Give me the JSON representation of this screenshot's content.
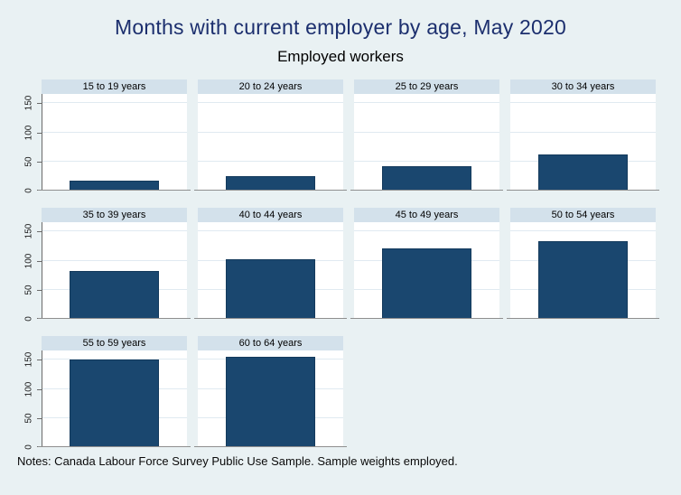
{
  "page": {
    "title": "Months with current employer by age, May 2020",
    "subtitle": "Employed workers",
    "notes": "Notes: Canada Labour Force Survey Public Use Sample. Sample weights employed."
  },
  "colors": {
    "background": "#e9f1f3",
    "panel_header_bg": "#d3e1eb",
    "bar_fill": "#1a476f",
    "bar_outline": "#143a5c",
    "gridline": "#e0eaf1",
    "x_axis_line": "#8f8f8f",
    "y_axis_line": "#6b6b6b",
    "title_color": "#1c2f6e"
  },
  "chart_data": {
    "type": "bar",
    "layout": "small-multiples, one bar per panel, 4 columns x 3 rows (last row has 2 panels), y-axis labels on left column only, horizontal gridlines on",
    "title": "Months with current employer by age, May 2020",
    "subtitle": "Employed workers",
    "categories": [
      "15 to 19 years",
      "20 to 24 years",
      "25 to 29 years",
      "30 to 34 years",
      "35 to 39 years",
      "40 to 44 years",
      "45 to 49 years",
      "50 to 54 years",
      "55 to 59 years",
      "60 to 64 years"
    ],
    "values": [
      15,
      23,
      41,
      61,
      80,
      101,
      120,
      132,
      149,
      154
    ],
    "xlabel": "",
    "ylabel": "",
    "yticks": [
      0,
      50,
      100,
      150
    ],
    "ylim": [
      0,
      166
    ],
    "grid": true,
    "notes": "Notes: Canada Labour Force Survey Public Use Sample. Sample weights employed."
  }
}
